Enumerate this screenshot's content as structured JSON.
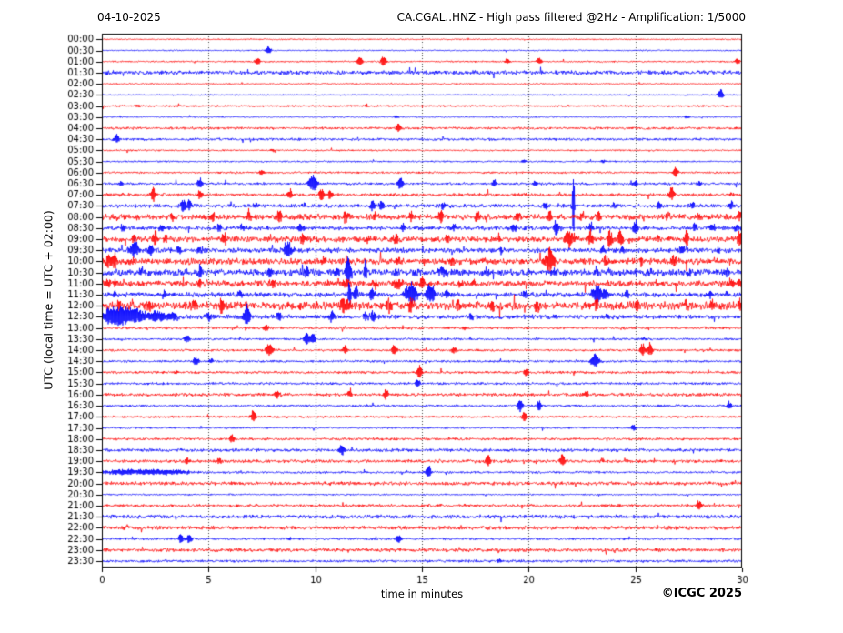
{
  "header": {
    "date": "04-10-2025",
    "title": "CA.CGAL..HNZ - High pass filtered @2Hz - Amplification: 1/5000"
  },
  "footer": {
    "copyright": "©ICGC 2025"
  },
  "chart_data": {
    "type": "helicorder",
    "title": "CA.CGAL..HNZ - High pass filtered @2Hz - Amplification: 1/5000",
    "date": "04-10-2025",
    "xlabel": "time in minutes",
    "ylabel": "UTC (local time = UTC + 02:00)",
    "x_range": [
      0,
      30
    ],
    "x_ticks": [
      0,
      5,
      10,
      15,
      20,
      25,
      30
    ],
    "grid": "vertical-dotted",
    "minutes_per_row": 30,
    "colors": {
      "even_row": "#ff0000",
      "odd_row": "#0000ff",
      "axis": "#000000",
      "grid": "#444444"
    },
    "rows": [
      {
        "t": "00:00",
        "n": 0.4,
        "e": []
      },
      {
        "t": "00:30",
        "n": 0.4,
        "e": [
          [
            7.8,
            5
          ]
        ]
      },
      {
        "t": "01:00",
        "n": 0.5,
        "e": [
          [
            7.3,
            5
          ],
          [
            12.1,
            6
          ],
          [
            13.2,
            7
          ],
          [
            19.0,
            3
          ],
          [
            20.5,
            4
          ],
          [
            29.8,
            4
          ]
        ]
      },
      {
        "t": "01:30",
        "n": 1.3,
        "e": []
      },
      {
        "t": "02:00",
        "n": 0.4,
        "e": []
      },
      {
        "t": "02:30",
        "n": 0.4,
        "e": [
          [
            29.0,
            7
          ]
        ]
      },
      {
        "t": "03:00",
        "n": 0.6,
        "e": [
          [
            1.7,
            2
          ],
          [
            12.4,
            2
          ]
        ]
      },
      {
        "t": "03:30",
        "n": 0.4,
        "e": [
          [
            13.8,
            2
          ],
          [
            27.4,
            2
          ]
        ]
      },
      {
        "t": "04:00",
        "n": 0.8,
        "e": [
          [
            13.9,
            6
          ]
        ]
      },
      {
        "t": "04:30",
        "n": 0.8,
        "e": [
          [
            0.7,
            6
          ]
        ]
      },
      {
        "t": "05:00",
        "n": 0.5,
        "e": [
          [
            8.0,
            2
          ]
        ]
      },
      {
        "t": "05:30",
        "n": 0.5,
        "e": [
          [
            19.8,
            2
          ],
          [
            23.5,
            2
          ]
        ]
      },
      {
        "t": "06:00",
        "n": 0.6,
        "e": [
          [
            7.5,
            3
          ],
          [
            26.9,
            6
          ]
        ]
      },
      {
        "t": "06:30",
        "n": 0.8,
        "e": [
          [
            0.9,
            3
          ],
          [
            4.6,
            7
          ],
          [
            9.9,
            11,
            0.2
          ],
          [
            14.0,
            9
          ],
          [
            18.4,
            4
          ],
          [
            20.3,
            3
          ],
          [
            25.0,
            4
          ],
          [
            28.0,
            3
          ]
        ]
      },
      {
        "t": "07:00",
        "n": 1.0,
        "e": [
          [
            2.4,
            9
          ],
          [
            4.6,
            5
          ],
          [
            8.8,
            7
          ],
          [
            10.3,
            8
          ],
          [
            10.7,
            6
          ],
          [
            26.7,
            8
          ],
          [
            29.5,
            3
          ]
        ]
      },
      {
        "t": "07:30",
        "n": 1.2,
        "e": [
          [
            3.8,
            9
          ],
          [
            4.1,
            7
          ],
          [
            7.2,
            4
          ],
          [
            9.5,
            4
          ],
          [
            12.7,
            7
          ],
          [
            13.1,
            6
          ],
          [
            16.0,
            5
          ],
          [
            20.8,
            4
          ],
          [
            22.1,
            44,
            0.05
          ],
          [
            24.0,
            4
          ],
          [
            26.1,
            5
          ],
          [
            27.7,
            6
          ],
          [
            29.5,
            5
          ]
        ]
      },
      {
        "t": "08:00",
        "n": 1.8,
        "e": [
          [
            3.3,
            5
          ],
          [
            5.2,
            6
          ],
          [
            6.9,
            8
          ],
          [
            8.3,
            9
          ],
          [
            11.4,
            8
          ],
          [
            12.8,
            5
          ],
          [
            14.5,
            5
          ],
          [
            15.9,
            8
          ],
          [
            17.6,
            8
          ],
          [
            19.5,
            5
          ],
          [
            21.0,
            6
          ],
          [
            22.5,
            5
          ],
          [
            23.3,
            6
          ],
          [
            26.5,
            4
          ],
          [
            28.0,
            4
          ],
          [
            29.9,
            8
          ]
        ]
      },
      {
        "t": "08:30",
        "n": 1.3,
        "e": [
          [
            1.0,
            4
          ],
          [
            2.8,
            5
          ],
          [
            5.5,
            5
          ],
          [
            6.6,
            5
          ],
          [
            9.3,
            6
          ],
          [
            14.1,
            6
          ],
          [
            16.5,
            5
          ],
          [
            19.3,
            5
          ],
          [
            21.3,
            10
          ],
          [
            22.9,
            6
          ],
          [
            25.0,
            8
          ],
          [
            27.8,
            6
          ],
          [
            28.6,
            5
          ],
          [
            29.7,
            5
          ]
        ]
      },
      {
        "t": "09:00",
        "n": 1.8,
        "e": [
          [
            1.5,
            6
          ],
          [
            2.5,
            8
          ],
          [
            3.0,
            7
          ],
          [
            5.75,
            8
          ],
          [
            9.4,
            6
          ],
          [
            12.5,
            5
          ],
          [
            13.8,
            6
          ],
          [
            16.2,
            4
          ],
          [
            18.6,
            5
          ],
          [
            21.9,
            10,
            0.25
          ],
          [
            22.9,
            9
          ],
          [
            23.8,
            13
          ],
          [
            24.3,
            12
          ],
          [
            26.1,
            5
          ],
          [
            27.4,
            10
          ],
          [
            29.9,
            9
          ]
        ]
      },
      {
        "t": "09:30",
        "n": 1.5,
        "e": [
          [
            1.5,
            12,
            0.2
          ],
          [
            2.3,
            8
          ],
          [
            3.6,
            4
          ],
          [
            4.6,
            4
          ],
          [
            8.7,
            11,
            0.2
          ],
          [
            14.0,
            3
          ],
          [
            18.7,
            4
          ],
          [
            23.5,
            5
          ],
          [
            24.4,
            4
          ],
          [
            27.2,
            5
          ],
          [
            28.9,
            4
          ]
        ]
      },
      {
        "t": "10:00",
        "n": 2.0,
        "e": [
          [
            0.3,
            9
          ],
          [
            0.6,
            10
          ],
          [
            1.5,
            4
          ],
          [
            10.4,
            4
          ],
          [
            13.85,
            6
          ],
          [
            16.4,
            4
          ],
          [
            21.0,
            17,
            0.2
          ],
          [
            23.6,
            6
          ],
          [
            25.3,
            4
          ],
          [
            26.8,
            7
          ],
          [
            28.8,
            5
          ]
        ]
      },
      {
        "t": "10:30",
        "n": 2.2,
        "e": [
          [
            1.9,
            4
          ],
          [
            4.6,
            12,
            0.06
          ],
          [
            7.9,
            5
          ],
          [
            9.6,
            5
          ],
          [
            11.0,
            6
          ],
          [
            11.55,
            16,
            0.15
          ],
          [
            12.35,
            12,
            0.08
          ],
          [
            13.8,
            6
          ],
          [
            14.7,
            5
          ],
          [
            15.9,
            5,
            0.3
          ],
          [
            18.0,
            4
          ],
          [
            21.2,
            4
          ],
          [
            23.2,
            5
          ],
          [
            25.6,
            4
          ],
          [
            27.5,
            4
          ],
          [
            29.3,
            4
          ]
        ]
      },
      {
        "t": "11:00",
        "n": 1.8,
        "e": [
          [
            0.3,
            5
          ],
          [
            0.6,
            5
          ],
          [
            4.6,
            6
          ],
          [
            8.0,
            7
          ],
          [
            10.5,
            4
          ],
          [
            11.4,
            5,
            0.3
          ],
          [
            12.8,
            6
          ],
          [
            13.9,
            6,
            0.3
          ],
          [
            15.0,
            8
          ],
          [
            16.8,
            5
          ],
          [
            17.4,
            4
          ],
          [
            26.0,
            3
          ],
          [
            29.5,
            7
          ],
          [
            29.9,
            5
          ]
        ]
      },
      {
        "t": "11:30",
        "n": 1.5,
        "e": [
          [
            0.6,
            4
          ],
          [
            2.9,
            5
          ],
          [
            6.5,
            5
          ],
          [
            11.6,
            13,
            0.07
          ],
          [
            11.9,
            10
          ],
          [
            12.65,
            9
          ],
          [
            14.5,
            13,
            0.3
          ],
          [
            15.3,
            12
          ],
          [
            15.5,
            10
          ],
          [
            16.2,
            7
          ],
          [
            19.8,
            6
          ],
          [
            23.2,
            12,
            0.25
          ],
          [
            23.6,
            8
          ],
          [
            24.6,
            6
          ],
          [
            28.5,
            6
          ],
          [
            29.3,
            4
          ]
        ]
      },
      {
        "t": "12:00",
        "n": 2.5,
        "e": [
          [
            0.8,
            5
          ],
          [
            2.2,
            6
          ],
          [
            4.3,
            6
          ],
          [
            5.6,
            9
          ],
          [
            11.35,
            10,
            0.25
          ],
          [
            13.4,
            10
          ],
          [
            14.5,
            8
          ],
          [
            16.7,
            7
          ],
          [
            18.3,
            6
          ],
          [
            20.4,
            5
          ],
          [
            23.2,
            8
          ],
          [
            25.1,
            7
          ],
          [
            27.4,
            8
          ],
          [
            28.6,
            5
          ],
          [
            29.9,
            6
          ]
        ]
      },
      {
        "t": "12:30",
        "n": 1.4,
        "e": [
          [
            0.3,
            8,
            0.25
          ],
          [
            0.8,
            12,
            0.4
          ],
          [
            1.6,
            9,
            0.5
          ],
          [
            2.6,
            7,
            0.4
          ],
          [
            3.3,
            5,
            0.3
          ],
          [
            5.0,
            6
          ],
          [
            6.8,
            15,
            0.15
          ],
          [
            8.3,
            7
          ],
          [
            10.8,
            8
          ],
          [
            12.35,
            6
          ],
          [
            12.7,
            7
          ],
          [
            17.3,
            5
          ],
          [
            21.3,
            3
          ],
          [
            23.7,
            3
          ]
        ]
      },
      {
        "t": "13:00",
        "n": 0.8,
        "e": [
          [
            7.7,
            5
          ],
          [
            17.0,
            2
          ]
        ]
      },
      {
        "t": "13:30",
        "n": 0.7,
        "e": [
          [
            4.0,
            5
          ],
          [
            9.6,
            9
          ],
          [
            9.9,
            7
          ],
          [
            25.4,
            2
          ]
        ]
      },
      {
        "t": "14:00",
        "n": 0.7,
        "e": [
          [
            7.85,
            8,
            0.18
          ],
          [
            11.4,
            6
          ],
          [
            13.7,
            7
          ],
          [
            16.5,
            4
          ],
          [
            25.35,
            8
          ],
          [
            25.7,
            9
          ]
        ]
      },
      {
        "t": "14:30",
        "n": 0.7,
        "e": [
          [
            4.4,
            6
          ],
          [
            5.1,
            3
          ],
          [
            23.1,
            9,
            0.2
          ]
        ]
      },
      {
        "t": "15:00",
        "n": 0.8,
        "e": [
          [
            3.5,
            3
          ],
          [
            14.9,
            9
          ],
          [
            19.9,
            6
          ]
        ]
      },
      {
        "t": "15:30",
        "n": 0.8,
        "e": [
          [
            14.8,
            5
          ]
        ]
      },
      {
        "t": "16:00",
        "n": 1.0,
        "e": [
          [
            8.2,
            6
          ],
          [
            11.6,
            4
          ],
          [
            13.3,
            6
          ],
          [
            22.7,
            5
          ]
        ]
      },
      {
        "t": "16:30",
        "n": 0.7,
        "e": [
          [
            19.6,
            9
          ],
          [
            20.5,
            7
          ],
          [
            29.4,
            5
          ]
        ]
      },
      {
        "t": "17:00",
        "n": 0.7,
        "e": [
          [
            7.1,
            8
          ],
          [
            19.8,
            6
          ]
        ]
      },
      {
        "t": "17:30",
        "n": 0.6,
        "e": [
          [
            24.9,
            4
          ]
        ]
      },
      {
        "t": "18:00",
        "n": 0.8,
        "e": [
          [
            6.1,
            6
          ]
        ]
      },
      {
        "t": "18:30",
        "n": 1.0,
        "e": [
          [
            11.25,
            7
          ]
        ]
      },
      {
        "t": "19:00",
        "n": 1.0,
        "e": [
          [
            4.0,
            5
          ],
          [
            5.5,
            4
          ],
          [
            18.1,
            9
          ],
          [
            21.6,
            8
          ]
        ]
      },
      {
        "t": "19:30",
        "n": 0.7,
        "e": [
          [
            1.0,
            3,
            1.2
          ],
          [
            3.0,
            3,
            1.2
          ],
          [
            15.3,
            8
          ]
        ]
      },
      {
        "t": "20:00",
        "n": 1.1,
        "e": []
      },
      {
        "t": "20:30",
        "n": 0.5,
        "e": []
      },
      {
        "t": "21:00",
        "n": 0.9,
        "e": [
          [
            28.0,
            7
          ]
        ]
      },
      {
        "t": "21:30",
        "n": 1.2,
        "e": []
      },
      {
        "t": "22:00",
        "n": 1.2,
        "e": []
      },
      {
        "t": "22:30",
        "n": 0.7,
        "e": [
          [
            3.7,
            6
          ],
          [
            4.1,
            6
          ],
          [
            8.8,
            2
          ],
          [
            13.9,
            6
          ]
        ]
      },
      {
        "t": "23:00",
        "n": 1.1,
        "e": []
      },
      {
        "t": "23:30",
        "n": 0.8,
        "e": [
          [
            18.6,
            2
          ]
        ]
      }
    ],
    "xlabel_text": "time in minutes"
  }
}
